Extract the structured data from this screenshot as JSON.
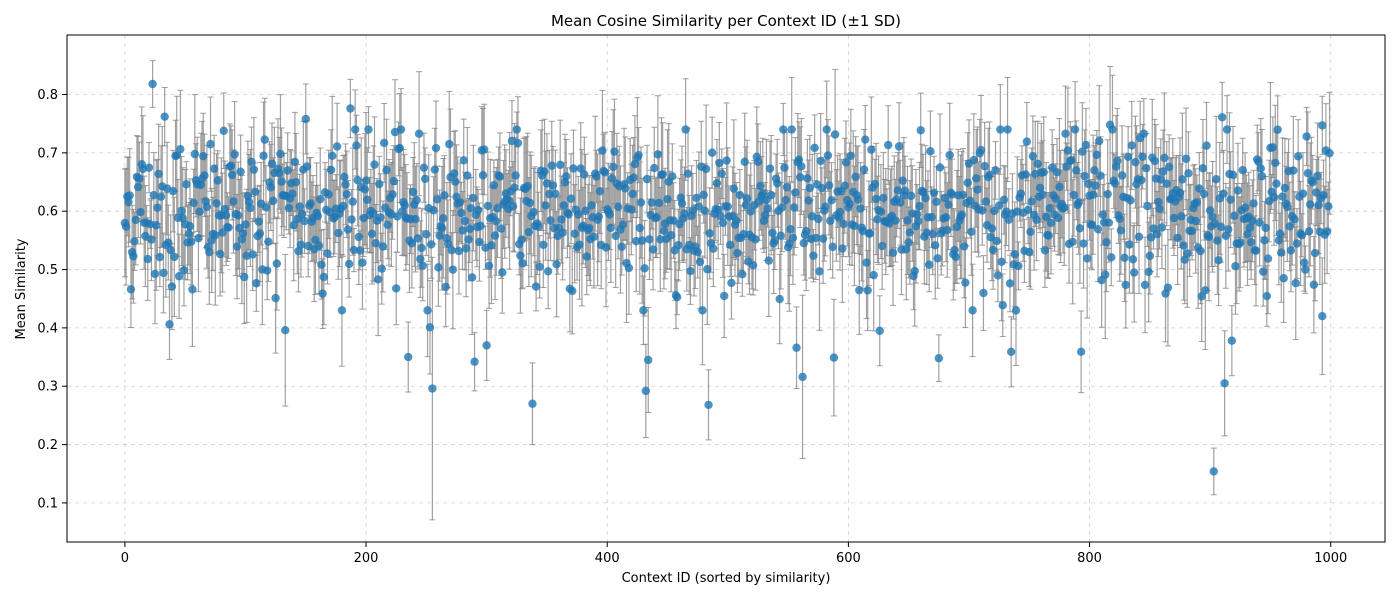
{
  "chart_data": {
    "type": "scatter",
    "title": "Mean Cosine Similarity per Context ID (±1 SD)",
    "xlabel": "Context ID (sorted by similarity)",
    "ylabel": "Mean Similarity",
    "xlim": [
      -48,
      1045
    ],
    "ylim": [
      0.033,
      0.902
    ],
    "xticks": [
      0,
      200,
      400,
      600,
      800,
      1000
    ],
    "yticks": [
      0.1,
      0.2,
      0.3,
      0.4,
      0.5,
      0.6,
      0.7,
      0.8
    ],
    "grid": true,
    "marker_color": "#1f77b4",
    "errorbar_color": "#808080",
    "series": [
      {
        "x_start": 0,
        "x_step": 1,
        "mean": 0.6,
        "sd": 0.065,
        "err_mean": 0.075,
        "n": 1000,
        "notable_points": [
          {
            "x": 23,
            "y": 0.818,
            "sd": 0.04
          },
          {
            "x": 33,
            "y": 0.762,
            "sd": 0.05
          },
          {
            "x": 37,
            "y": 0.406,
            "sd": 0.06
          },
          {
            "x": 133,
            "y": 0.396,
            "sd": 0.13
          },
          {
            "x": 150,
            "y": 0.758,
            "sd": 0.06
          },
          {
            "x": 187,
            "y": 0.776,
            "sd": 0.05
          },
          {
            "x": 235,
            "y": 0.35,
            "sd": 0.06
          },
          {
            "x": 253,
            "y": 0.401,
            "sd": 0.08
          },
          {
            "x": 255,
            "y": 0.296,
            "sd": 0.225
          },
          {
            "x": 290,
            "y": 0.342,
            "sd": 0.05
          },
          {
            "x": 300,
            "y": 0.37,
            "sd": 0.06
          },
          {
            "x": 338,
            "y": 0.27,
            "sd": 0.07
          },
          {
            "x": 432,
            "y": 0.292,
            "sd": 0.08
          },
          {
            "x": 434,
            "y": 0.345,
            "sd": 0.09
          },
          {
            "x": 484,
            "y": 0.268,
            "sd": 0.06
          },
          {
            "x": 557,
            "y": 0.366,
            "sd": 0.07
          },
          {
            "x": 562,
            "y": 0.316,
            "sd": 0.14
          },
          {
            "x": 588,
            "y": 0.349,
            "sd": 0.1
          },
          {
            "x": 626,
            "y": 0.395,
            "sd": 0.06
          },
          {
            "x": 675,
            "y": 0.348,
            "sd": 0.04
          },
          {
            "x": 735,
            "y": 0.359,
            "sd": 0.06
          },
          {
            "x": 793,
            "y": 0.359,
            "sd": 0.07
          },
          {
            "x": 817,
            "y": 0.748,
            "sd": 0.1
          },
          {
            "x": 845,
            "y": 0.733,
            "sd": 0.06
          },
          {
            "x": 903,
            "y": 0.154,
            "sd": 0.04
          },
          {
            "x": 910,
            "y": 0.761,
            "sd": 0.06
          },
          {
            "x": 912,
            "y": 0.305,
            "sd": 0.09
          },
          {
            "x": 918,
            "y": 0.378,
            "sd": 0.06
          },
          {
            "x": 980,
            "y": 0.728,
            "sd": 0.05
          },
          {
            "x": 993,
            "y": 0.747,
            "sd": 0.05
          },
          {
            "x": 993,
            "y": 0.42,
            "sd": 0.1
          }
        ]
      }
    ]
  }
}
